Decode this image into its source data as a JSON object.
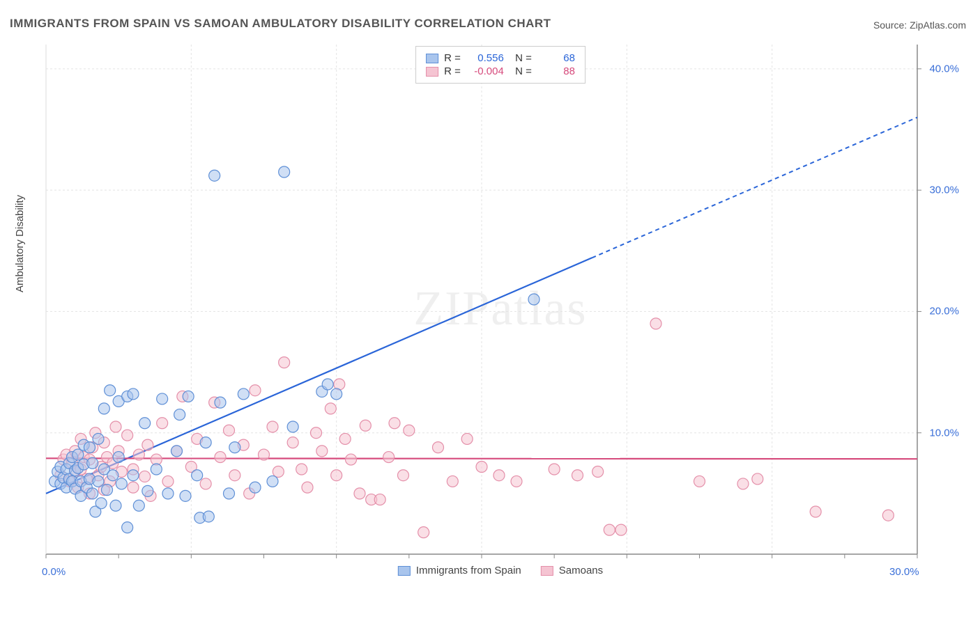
{
  "chart": {
    "type": "scatter",
    "title": "IMMIGRANTS FROM SPAIN VS SAMOAN AMBULATORY DISABILITY CORRELATION CHART",
    "source_label": "Source:",
    "source_name": "ZipAtlas.com",
    "y_axis_label": "Ambulatory Disability",
    "watermark": "ZIPatlas",
    "xlim": [
      0,
      30
    ],
    "ylim": [
      0,
      42
    ],
    "x_ticks": [
      0,
      30
    ],
    "x_tick_labels": [
      "0.0%",
      "30.0%"
    ],
    "y_ticks": [
      10,
      20,
      30,
      40
    ],
    "y_tick_labels": [
      "10.0%",
      "20.0%",
      "30.0%",
      "40.0%"
    ],
    "background_color": "#ffffff",
    "grid_color": "#e3e3e3",
    "axis_color": "#888888",
    "tick_label_color": "#3a6fd8",
    "marker_radius": 8,
    "marker_opacity": 0.55,
    "series": [
      {
        "name": "Immigrants from Spain",
        "color_fill": "#a9c5ed",
        "color_stroke": "#5e8fd6",
        "r": "0.556",
        "n": "68",
        "stat_color": "#2a65d8",
        "regression": {
          "x1": 0,
          "y1": 5.0,
          "x2": 30,
          "y2": 36.0,
          "solid_until_x": 18.8
        },
        "points": [
          [
            0.3,
            6.0
          ],
          [
            0.4,
            6.8
          ],
          [
            0.5,
            7.2
          ],
          [
            0.5,
            5.8
          ],
          [
            0.6,
            6.3
          ],
          [
            0.7,
            7.0
          ],
          [
            0.7,
            5.5
          ],
          [
            0.8,
            6.2
          ],
          [
            0.8,
            7.5
          ],
          [
            0.9,
            6.0
          ],
          [
            0.9,
            8.0
          ],
          [
            1.0,
            5.4
          ],
          [
            1.0,
            6.9
          ],
          [
            1.1,
            7.1
          ],
          [
            1.1,
            8.2
          ],
          [
            1.2,
            6.0
          ],
          [
            1.2,
            4.8
          ],
          [
            1.3,
            7.4
          ],
          [
            1.3,
            9.0
          ],
          [
            1.4,
            5.5
          ],
          [
            1.5,
            6.2
          ],
          [
            1.5,
            8.8
          ],
          [
            1.6,
            5.0
          ],
          [
            1.6,
            7.5
          ],
          [
            1.7,
            3.5
          ],
          [
            1.8,
            6.0
          ],
          [
            1.8,
            9.5
          ],
          [
            1.9,
            4.2
          ],
          [
            2.0,
            7.0
          ],
          [
            2.0,
            12.0
          ],
          [
            2.1,
            5.3
          ],
          [
            2.2,
            13.5
          ],
          [
            2.3,
            6.5
          ],
          [
            2.4,
            4.0
          ],
          [
            2.5,
            8.0
          ],
          [
            2.5,
            12.6
          ],
          [
            2.6,
            5.8
          ],
          [
            2.8,
            13.0
          ],
          [
            2.8,
            2.2
          ],
          [
            3.0,
            6.5
          ],
          [
            3.0,
            13.2
          ],
          [
            3.2,
            4.0
          ],
          [
            3.4,
            10.8
          ],
          [
            3.5,
            5.2
          ],
          [
            3.8,
            7.0
          ],
          [
            4.0,
            12.8
          ],
          [
            4.2,
            5.0
          ],
          [
            4.5,
            8.5
          ],
          [
            4.6,
            11.5
          ],
          [
            4.8,
            4.8
          ],
          [
            4.9,
            13.0
          ],
          [
            5.2,
            6.5
          ],
          [
            5.3,
            3.0
          ],
          [
            5.5,
            9.2
          ],
          [
            5.6,
            3.1
          ],
          [
            5.8,
            31.2
          ],
          [
            6.0,
            12.5
          ],
          [
            6.3,
            5.0
          ],
          [
            6.5,
            8.8
          ],
          [
            6.8,
            13.2
          ],
          [
            7.2,
            5.5
          ],
          [
            7.8,
            6.0
          ],
          [
            8.2,
            31.5
          ],
          [
            8.5,
            10.5
          ],
          [
            9.5,
            13.4
          ],
          [
            9.7,
            14.0
          ],
          [
            10.0,
            13.2
          ],
          [
            16.8,
            21.0
          ]
        ]
      },
      {
        "name": "Samoans",
        "color_fill": "#f5c4d2",
        "color_stroke": "#e48fa9",
        "r": "-0.004",
        "n": "88",
        "stat_color": "#d64a7c",
        "regression": {
          "x1": 0,
          "y1": 7.9,
          "x2": 30,
          "y2": 7.85,
          "solid_until_x": 30
        },
        "points": [
          [
            0.5,
            6.5
          ],
          [
            0.6,
            7.8
          ],
          [
            0.7,
            8.2
          ],
          [
            0.8,
            6.0
          ],
          [
            0.9,
            7.5
          ],
          [
            1.0,
            8.5
          ],
          [
            1.0,
            6.8
          ],
          [
            1.1,
            5.5
          ],
          [
            1.2,
            7.0
          ],
          [
            1.2,
            9.5
          ],
          [
            1.3,
            8.0
          ],
          [
            1.4,
            6.2
          ],
          [
            1.5,
            7.8
          ],
          [
            1.5,
            5.0
          ],
          [
            1.6,
            8.8
          ],
          [
            1.7,
            10.0
          ],
          [
            1.8,
            6.5
          ],
          [
            1.9,
            7.2
          ],
          [
            2.0,
            9.2
          ],
          [
            2.0,
            5.3
          ],
          [
            2.1,
            8.0
          ],
          [
            2.2,
            6.0
          ],
          [
            2.3,
            7.5
          ],
          [
            2.4,
            10.5
          ],
          [
            2.5,
            8.5
          ],
          [
            2.6,
            6.8
          ],
          [
            2.8,
            9.8
          ],
          [
            3.0,
            7.0
          ],
          [
            3.0,
            5.5
          ],
          [
            3.2,
            8.2
          ],
          [
            3.4,
            6.4
          ],
          [
            3.5,
            9.0
          ],
          [
            3.6,
            4.8
          ],
          [
            3.8,
            7.8
          ],
          [
            4.0,
            10.8
          ],
          [
            4.2,
            6.0
          ],
          [
            4.5,
            8.5
          ],
          [
            4.7,
            13.0
          ],
          [
            5.0,
            7.2
          ],
          [
            5.2,
            9.5
          ],
          [
            5.5,
            5.8
          ],
          [
            5.8,
            12.5
          ],
          [
            6.0,
            8.0
          ],
          [
            6.3,
            10.2
          ],
          [
            6.5,
            6.5
          ],
          [
            6.8,
            9.0
          ],
          [
            7.0,
            5.0
          ],
          [
            7.2,
            13.5
          ],
          [
            7.5,
            8.2
          ],
          [
            7.8,
            10.5
          ],
          [
            8.0,
            6.8
          ],
          [
            8.2,
            15.8
          ],
          [
            8.5,
            9.2
          ],
          [
            8.8,
            7.0
          ],
          [
            9.0,
            5.5
          ],
          [
            9.3,
            10.0
          ],
          [
            9.5,
            8.5
          ],
          [
            9.8,
            12.0
          ],
          [
            10.0,
            6.5
          ],
          [
            10.1,
            14.0
          ],
          [
            10.3,
            9.5
          ],
          [
            10.5,
            7.8
          ],
          [
            10.8,
            5.0
          ],
          [
            11.0,
            10.6
          ],
          [
            11.2,
            4.5
          ],
          [
            11.5,
            4.5
          ],
          [
            11.8,
            8.0
          ],
          [
            12.0,
            10.8
          ],
          [
            12.3,
            6.5
          ],
          [
            12.5,
            10.2
          ],
          [
            13.0,
            1.8
          ],
          [
            13.5,
            8.8
          ],
          [
            14.0,
            6.0
          ],
          [
            14.5,
            9.5
          ],
          [
            15.0,
            7.2
          ],
          [
            15.6,
            6.5
          ],
          [
            16.2,
            6.0
          ],
          [
            17.5,
            7.0
          ],
          [
            18.3,
            6.5
          ],
          [
            19.0,
            6.8
          ],
          [
            19.4,
            2.0
          ],
          [
            19.8,
            2.0
          ],
          [
            21.0,
            19.0
          ],
          [
            22.5,
            6.0
          ],
          [
            24.0,
            5.8
          ],
          [
            24.5,
            6.2
          ],
          [
            26.5,
            3.5
          ],
          [
            29.0,
            3.2
          ]
        ]
      }
    ],
    "bottom_legend": [
      {
        "label": "Immigrants from Spain",
        "fill": "#a9c5ed",
        "stroke": "#5e8fd6"
      },
      {
        "label": "Samoans",
        "fill": "#f5c4d2",
        "stroke": "#e48fa9"
      }
    ]
  }
}
